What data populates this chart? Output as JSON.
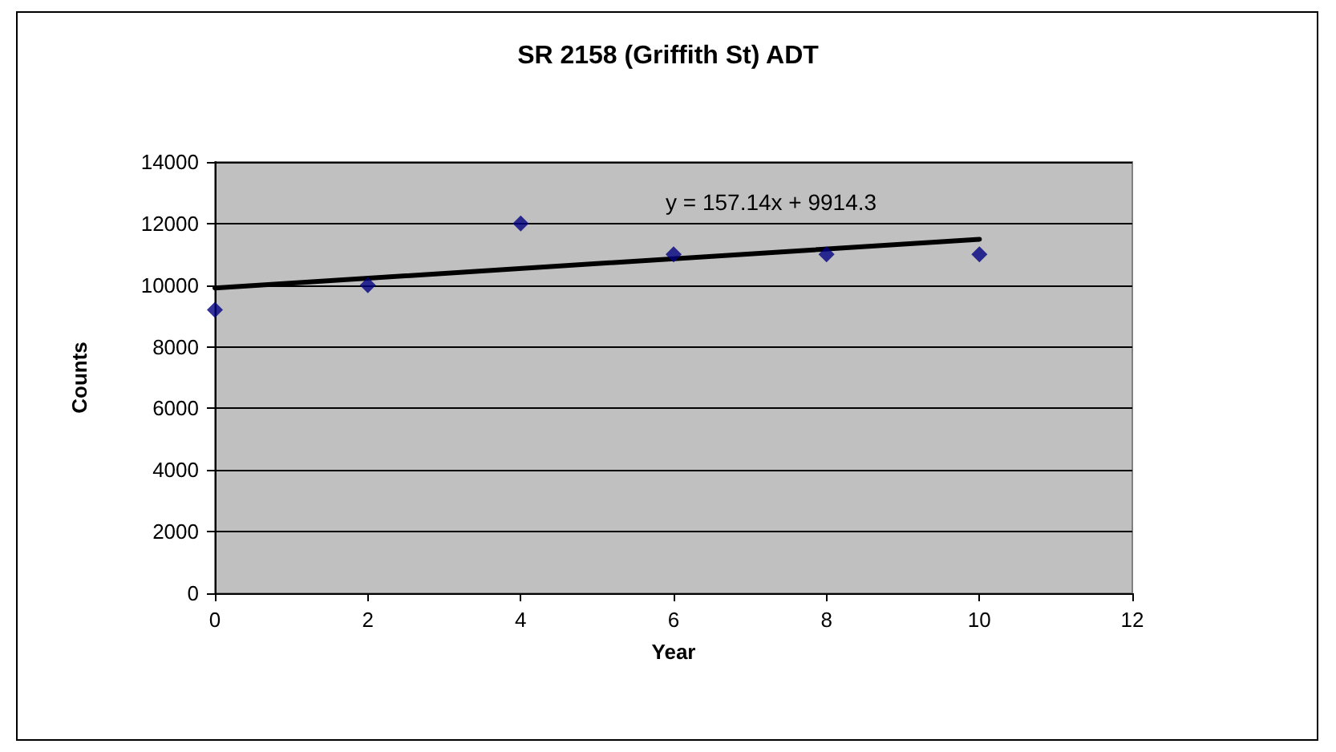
{
  "chart_data": {
    "type": "scatter",
    "title": "SR 2158 (Griffith St) ADT",
    "xlabel": "Year",
    "ylabel": "Counts",
    "x": [
      0,
      2,
      4,
      6,
      8,
      10
    ],
    "series": [
      {
        "type": "scatter",
        "color": "#000080",
        "marker": "diamond",
        "values": [
          9200,
          10000,
          12000,
          11000,
          11000,
          11000
        ]
      },
      {
        "type": "line",
        "color": "#000000",
        "marker": "none",
        "line_style": "solid",
        "x": [
          0,
          10
        ],
        "values": [
          9910,
          11490
        ]
      }
    ],
    "xlim": [
      0,
      12
    ],
    "xticks": [
      0,
      2,
      4,
      6,
      8,
      10,
      12
    ],
    "ylim": [
      0,
      14000
    ],
    "yticks": [
      0,
      2000,
      4000,
      6000,
      8000,
      10000,
      12000,
      14000
    ],
    "grid": "y",
    "annotations": [
      "y = 157.14x + 9914.3"
    ]
  }
}
